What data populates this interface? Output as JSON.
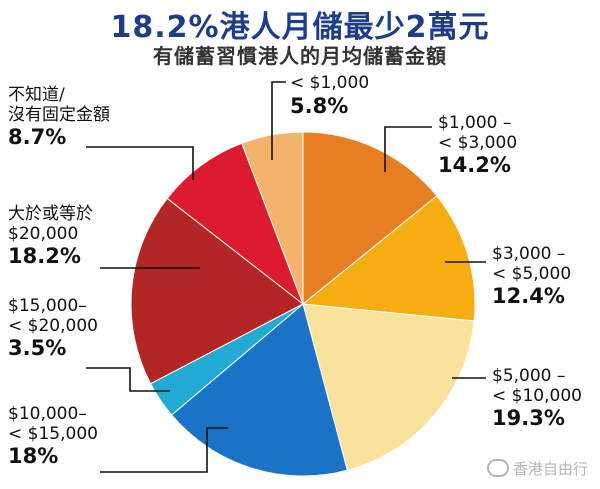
{
  "chart_data": {
    "type": "pie",
    "title": "18.2%港人月儲最少2萬元",
    "subtitle": "有儲蓄習慣港人的月均儲蓄金額",
    "slices": [
      {
        "key": "s1",
        "label_lines": [
          "$1,000 –",
          "< $3,000"
        ],
        "percent_label": "14.2%",
        "value": 14.2,
        "color": "#e87e24"
      },
      {
        "key": "s2",
        "label_lines": [
          "$3,000  –",
          "< $5,000"
        ],
        "percent_label": "12.4%",
        "value": 12.4,
        "color": "#f5ad12"
      },
      {
        "key": "s3",
        "label_lines": [
          "$5,000  –",
          "< $10,000"
        ],
        "percent_label": "19.3%",
        "value": 19.3,
        "color": "#f8e29c"
      },
      {
        "key": "s4",
        "label_lines": [
          "$10,000–",
          "< $15,000"
        ],
        "percent_label": "18%",
        "value": 18.0,
        "color": "#1b73c8"
      },
      {
        "key": "s5",
        "label_lines": [
          "$15,000–",
          "< $20,000"
        ],
        "percent_label": "3.5%",
        "value": 3.5,
        "color": "#21abd2"
      },
      {
        "key": "s6",
        "label_lines": [
          "大於或等於",
          "$20,000"
        ],
        "percent_label": "18.2%",
        "value": 18.2,
        "color": "#b42525"
      },
      {
        "key": "s7",
        "label_lines": [
          "不知道/",
          "沒有固定金額"
        ],
        "percent_label": "8.7%",
        "value": 8.7,
        "color": "#dc1c2e"
      },
      {
        "key": "s8",
        "label_lines": [
          "< $1,000"
        ],
        "percent_label": "5.8%",
        "value": 5.8,
        "color": "#f2b46c"
      }
    ]
  },
  "watermark": {
    "text": "香港自由行"
  }
}
